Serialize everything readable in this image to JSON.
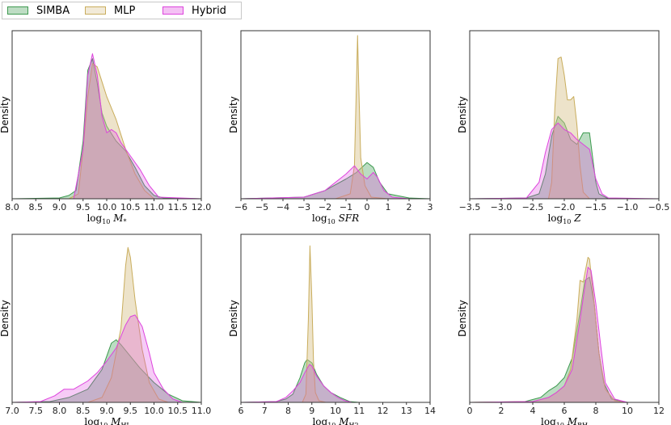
{
  "legend": {
    "entries": [
      {
        "label": "SIMBA",
        "color": "#3d9a4f",
        "fill": "#3d9a4f"
      },
      {
        "label": "MLP",
        "color": "#c9ad5c",
        "fill": "#d8c08a"
      },
      {
        "label": "Hybrid",
        "color": "#dd44dd",
        "fill": "#dd44dd"
      }
    ]
  },
  "chart_data": [
    {
      "type": "area",
      "title": "",
      "ylabel": "Density",
      "xlabel_parts": [
        "log",
        "10",
        " M",
        "*"
      ],
      "xlim": [
        8.0,
        12.0
      ],
      "xticks": [
        "8.0",
        "8.5",
        "9.0",
        "9.5",
        "10.0",
        "10.5",
        "11.0",
        "11.5",
        "12.0"
      ],
      "tick_values": [
        8.0,
        8.5,
        9.0,
        9.5,
        10.0,
        10.5,
        11.0,
        11.5,
        12.0
      ],
      "ymax": 1.0,
      "series": [
        {
          "name": "SIMBA",
          "x": [
            8.0,
            9.0,
            9.2,
            9.35,
            9.5,
            9.6,
            9.7,
            9.8,
            9.9,
            10.0,
            10.2,
            10.4,
            10.6,
            10.8,
            11.0,
            11.2,
            12.0
          ],
          "y": [
            0,
            0.005,
            0.02,
            0.05,
            0.35,
            0.78,
            0.85,
            0.7,
            0.52,
            0.44,
            0.35,
            0.29,
            0.19,
            0.08,
            0.02,
            0.005,
            0
          ]
        },
        {
          "name": "MLP",
          "x": [
            8.0,
            9.2,
            9.4,
            9.5,
            9.6,
            9.7,
            9.8,
            10.0,
            10.2,
            10.4,
            10.6,
            10.8,
            11.0,
            12.0
          ],
          "y": [
            0,
            0,
            0.03,
            0.3,
            0.62,
            0.82,
            0.8,
            0.62,
            0.48,
            0.3,
            0.15,
            0.05,
            0,
            0
          ]
        },
        {
          "name": "Hybrid",
          "x": [
            8.0,
            9.3,
            9.5,
            9.6,
            9.7,
            9.8,
            9.9,
            10.0,
            10.1,
            10.2,
            10.3,
            10.5,
            10.7,
            10.9,
            11.1,
            12.0
          ],
          "y": [
            0,
            0,
            0.3,
            0.75,
            0.88,
            0.75,
            0.5,
            0.4,
            0.42,
            0.4,
            0.34,
            0.26,
            0.18,
            0.08,
            0.01,
            0
          ]
        }
      ]
    },
    {
      "type": "area",
      "title": "",
      "ylabel": "Density",
      "xlabel_parts": [
        "log",
        "10",
        " SFR",
        ""
      ],
      "xlim": [
        -6,
        3
      ],
      "xticks": [
        "−6",
        "−5",
        "−4",
        "−3",
        "−2",
        "−1",
        "0",
        "1",
        "2",
        "3"
      ],
      "tick_values": [
        -6,
        -5,
        -4,
        -3,
        -2,
        -1,
        0,
        1,
        2,
        3
      ],
      "ymax": 1.0,
      "series": [
        {
          "name": "SIMBA",
          "x": [
            -6,
            -3,
            -2,
            -1,
            -0.5,
            0,
            0.3,
            0.6,
            1.0,
            2.0,
            3
          ],
          "y": [
            0,
            0.01,
            0.05,
            0.12,
            0.16,
            0.22,
            0.19,
            0.1,
            0.03,
            0.005,
            0
          ]
        },
        {
          "name": "MLP",
          "x": [
            -6,
            -1.5,
            -0.8,
            -0.6,
            -0.5,
            -0.45,
            -0.4,
            -0.3,
            -0.1,
            0.2,
            1,
            3
          ],
          "y": [
            0,
            0,
            0.03,
            0.2,
            0.72,
            0.99,
            0.72,
            0.25,
            0.08,
            0.01,
            0,
            0
          ]
        },
        {
          "name": "Hybrid",
          "x": [
            -6,
            -3,
            -2,
            -1,
            -0.6,
            -0.3,
            0,
            0.3,
            0.5,
            0.8,
            1.2,
            2,
            3
          ],
          "y": [
            0,
            0.01,
            0.05,
            0.15,
            0.2,
            0.15,
            0.12,
            0.16,
            0.13,
            0.05,
            0.01,
            0,
            0
          ]
        }
      ]
    },
    {
      "type": "area",
      "title": "",
      "ylabel": "Density",
      "xlabel_parts": [
        "log",
        "10",
        " Z",
        ""
      ],
      "xlim": [
        -3.5,
        -0.5
      ],
      "xticks": [
        "−3.5",
        "−3.0",
        "−2.5",
        "−2.0",
        "−1.5",
        "−1.0",
        "−0.5"
      ],
      "tick_values": [
        -3.5,
        -3.0,
        -2.5,
        -2.0,
        -1.5,
        -1.0,
        -0.5
      ],
      "ymax": 1.0,
      "series": [
        {
          "name": "SIMBA",
          "x": [
            -3.5,
            -2.6,
            -2.4,
            -2.3,
            -2.2,
            -2.1,
            -2.0,
            -1.9,
            -1.8,
            -1.7,
            -1.6,
            -1.5,
            -1.45,
            -1.3,
            -0.5
          ],
          "y": [
            0,
            0.005,
            0.03,
            0.15,
            0.38,
            0.5,
            0.46,
            0.36,
            0.33,
            0.4,
            0.4,
            0.1,
            0.03,
            0,
            0
          ]
        },
        {
          "name": "MLP",
          "x": [
            -3.5,
            -2.25,
            -2.2,
            -2.15,
            -2.1,
            -2.05,
            -2.0,
            -1.95,
            -1.9,
            -1.85,
            -1.8,
            -1.75,
            -1.7,
            -1.6,
            -0.5
          ],
          "y": [
            0,
            0,
            0.1,
            0.55,
            0.85,
            0.86,
            0.75,
            0.6,
            0.6,
            0.62,
            0.45,
            0.2,
            0.04,
            0,
            0
          ]
        },
        {
          "name": "Hybrid",
          "x": [
            -3.5,
            -2.6,
            -2.4,
            -2.3,
            -2.2,
            -2.1,
            -2.0,
            -1.9,
            -1.8,
            -1.6,
            -1.5,
            -1.4,
            -1.3,
            -0.5
          ],
          "y": [
            0,
            0.005,
            0.1,
            0.28,
            0.42,
            0.46,
            0.42,
            0.4,
            0.36,
            0.3,
            0.12,
            0.03,
            0.005,
            0
          ]
        }
      ]
    },
    {
      "type": "area",
      "title": "",
      "ylabel": "Density",
      "xlabel_parts": [
        "log",
        "10",
        " M",
        "HI"
      ],
      "xlim": [
        7.0,
        11.0
      ],
      "xticks": [
        "7.0",
        "7.5",
        "8.0",
        "8.5",
        "9.0",
        "9.5",
        "10.0",
        "10.5",
        "11.0"
      ],
      "tick_values": [
        7.0,
        7.5,
        8.0,
        8.5,
        9.0,
        9.5,
        10.0,
        10.5,
        11.0
      ],
      "ymax": 1.0,
      "series": [
        {
          "name": "SIMBA",
          "x": [
            7.0,
            7.8,
            8.2,
            8.6,
            8.9,
            9.1,
            9.2,
            9.3,
            9.5,
            9.7,
            10.0,
            10.3,
            10.6,
            11.0
          ],
          "y": [
            0,
            0.005,
            0.03,
            0.08,
            0.2,
            0.36,
            0.38,
            0.35,
            0.28,
            0.21,
            0.12,
            0.05,
            0.01,
            0
          ]
        },
        {
          "name": "MLP",
          "x": [
            7.0,
            8.6,
            8.9,
            9.1,
            9.3,
            9.4,
            9.45,
            9.5,
            9.6,
            9.75,
            9.9,
            10.1,
            10.3,
            11.0
          ],
          "y": [
            0,
            0,
            0.03,
            0.15,
            0.45,
            0.83,
            0.94,
            0.88,
            0.62,
            0.32,
            0.12,
            0.02,
            0,
            0
          ]
        },
        {
          "name": "Hybrid",
          "x": [
            7.0,
            7.6,
            7.9,
            8.1,
            8.3,
            8.6,
            8.8,
            9.0,
            9.2,
            9.4,
            9.5,
            9.6,
            9.75,
            9.9,
            10.0,
            10.2,
            10.4,
            10.6,
            11.0
          ],
          "y": [
            0,
            0.005,
            0.04,
            0.08,
            0.08,
            0.13,
            0.18,
            0.25,
            0.33,
            0.47,
            0.52,
            0.53,
            0.46,
            0.3,
            0.18,
            0.08,
            0.02,
            0,
            0
          ]
        }
      ]
    },
    {
      "type": "area",
      "title": "",
      "ylabel": "Density",
      "xlabel_parts": [
        "log",
        "10",
        " M",
        "H2"
      ],
      "xlim": [
        6,
        14
      ],
      "xticks": [
        "6",
        "7",
        "8",
        "9",
        "10",
        "11",
        "12",
        "13",
        "14"
      ],
      "tick_values": [
        6,
        7,
        8,
        9,
        10,
        11,
        12,
        13,
        14
      ],
      "ymax": 1.0,
      "series": [
        {
          "name": "SIMBA",
          "x": [
            6,
            7.5,
            7.9,
            8.2,
            8.5,
            8.7,
            8.8,
            9.0,
            9.2,
            9.5,
            9.8,
            10.2,
            10.6,
            11,
            14
          ],
          "y": [
            0,
            0.005,
            0.02,
            0.05,
            0.15,
            0.24,
            0.26,
            0.24,
            0.17,
            0.1,
            0.06,
            0.03,
            0.005,
            0,
            0
          ]
        },
        {
          "name": "MLP",
          "x": [
            6,
            8.6,
            8.75,
            8.85,
            8.92,
            9.0,
            9.07,
            9.15,
            9.3,
            9.6,
            14
          ],
          "y": [
            0,
            0,
            0.05,
            0.5,
            0.95,
            0.62,
            0.25,
            0.06,
            0.01,
            0,
            0
          ]
        },
        {
          "name": "Hybrid",
          "x": [
            6,
            7.5,
            7.9,
            8.2,
            8.5,
            8.7,
            8.9,
            9.0,
            9.2,
            9.5,
            9.8,
            10.1,
            10.4,
            10.7,
            14
          ],
          "y": [
            0,
            0.005,
            0.03,
            0.07,
            0.12,
            0.18,
            0.23,
            0.22,
            0.16,
            0.1,
            0.06,
            0.03,
            0.01,
            0,
            0
          ]
        }
      ]
    },
    {
      "type": "area",
      "title": "",
      "ylabel": "Density",
      "xlabel_parts": [
        "log",
        "10",
        " M",
        "BH"
      ],
      "xlim": [
        0,
        12
      ],
      "xticks": [
        "0",
        "2",
        "4",
        "6",
        "8",
        "10",
        "12"
      ],
      "tick_values": [
        0,
        2,
        4,
        6,
        8,
        10,
        12
      ],
      "ymax": 1.0,
      "series": [
        {
          "name": "SIMBA",
          "x": [
            0,
            3.5,
            4.5,
            5.0,
            5.5,
            6.0,
            6.5,
            7.0,
            7.3,
            7.6,
            7.9,
            8.2,
            8.5,
            9.0,
            10,
            12
          ],
          "y": [
            0,
            0.005,
            0.03,
            0.07,
            0.1,
            0.15,
            0.27,
            0.55,
            0.74,
            0.76,
            0.6,
            0.3,
            0.12,
            0.02,
            0,
            0
          ]
        },
        {
          "name": "MLP",
          "x": [
            0,
            4.0,
            5.0,
            5.5,
            6.0,
            6.4,
            6.8,
            7.0,
            7.2,
            7.5,
            7.6,
            7.9,
            8.2,
            8.6,
            9.2,
            10,
            12
          ],
          "y": [
            0,
            0.005,
            0.03,
            0.06,
            0.1,
            0.2,
            0.5,
            0.74,
            0.73,
            0.88,
            0.87,
            0.6,
            0.3,
            0.08,
            0.01,
            0,
            0
          ]
        },
        {
          "name": "Hybrid",
          "x": [
            0,
            4.0,
            5.0,
            5.5,
            6.0,
            6.5,
            7.0,
            7.3,
            7.5,
            7.7,
            8.0,
            8.3,
            8.6,
            9.2,
            10,
            12
          ],
          "y": [
            0,
            0.005,
            0.03,
            0.06,
            0.1,
            0.2,
            0.5,
            0.7,
            0.82,
            0.8,
            0.6,
            0.35,
            0.12,
            0.02,
            0,
            0
          ]
        }
      ]
    }
  ]
}
